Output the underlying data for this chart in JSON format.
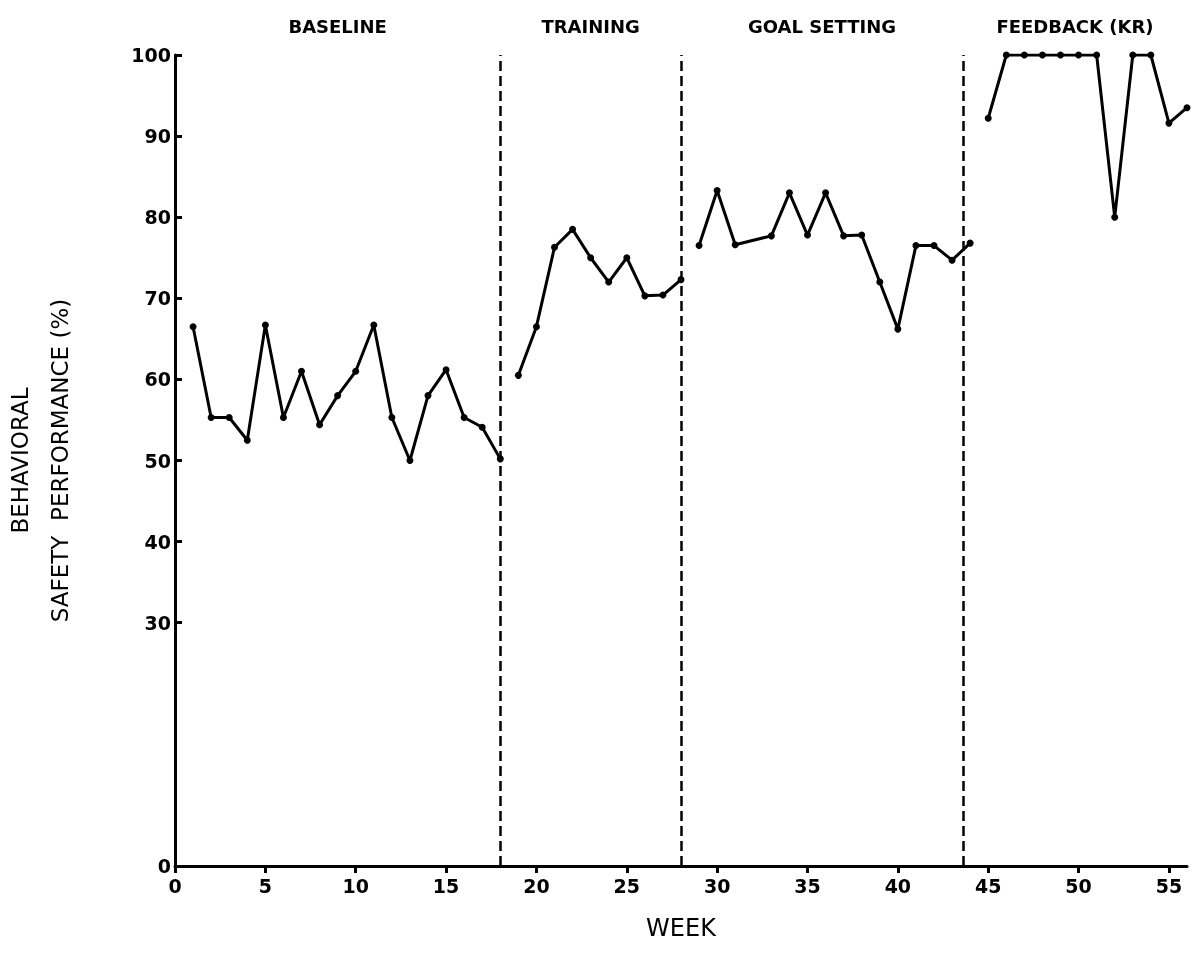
{
  "chart_data": {
    "type": "line",
    "xlabel": "WEEK",
    "ylabel": "BEHAVIORAL\nSAFETY  PERFORMANCE (%)",
    "annotations": [
      "BASELINE",
      "TRAINING",
      "GOAL SETTING",
      "FEEDBACK (KR)"
    ],
    "series": [
      {
        "color": "#000000",
        "x": [
          1,
          2,
          3,
          4,
          5,
          6,
          7,
          8,
          9,
          10,
          11,
          12,
          13,
          14,
          15,
          16,
          17,
          18
        ],
        "values": [
          66.5,
          55.3,
          55.3,
          52.5,
          66.7,
          55.3,
          61,
          54.4,
          58,
          61,
          66.7,
          55.3,
          50,
          58,
          61.2,
          55.3,
          54.1,
          50.2
        ]
      },
      {
        "color": "#000000",
        "x": [
          19,
          20,
          21,
          22,
          23,
          24,
          25,
          26,
          27,
          28
        ],
        "values": [
          60.5,
          66.5,
          76.3,
          78.5,
          75,
          72,
          75,
          70.3,
          70.4,
          72.3
        ]
      },
      {
        "color": "#000000",
        "x": [
          29,
          30,
          31,
          33,
          34,
          35,
          36,
          37,
          38,
          39,
          40,
          41,
          42,
          43,
          44
        ],
        "values": [
          76.5,
          83.3,
          76.6,
          77.7,
          83,
          77.8,
          83,
          77.7,
          77.8,
          72,
          66.2,
          76.5,
          76.5,
          74.7,
          76.8
        ]
      },
      {
        "color": "#000000",
        "x": [
          45,
          46,
          47,
          48,
          49,
          50,
          51,
          52,
          53,
          54,
          55,
          56
        ],
        "values": [
          92.2,
          100,
          100,
          100,
          100,
          100,
          100,
          80,
          100,
          100,
          91.6,
          93.5
        ]
      }
    ],
    "ref_lines": [
      {
        "axis": "x",
        "value": 18,
        "color": "#000000",
        "line_style": "dashed"
      },
      {
        "axis": "x",
        "value": 28,
        "color": "#000000",
        "line_style": "dashed"
      },
      {
        "axis": "x",
        "value": 43.6,
        "color": "#000000",
        "line_style": "dashed"
      }
    ],
    "xlim": [
      0,
      56
    ],
    "xticks": [
      0,
      5,
      10,
      15,
      20,
      25,
      30,
      35,
      40,
      45,
      50,
      55
    ],
    "ylim": [
      0,
      100
    ],
    "yticks": [
      0,
      30,
      40,
      50,
      60,
      70,
      80,
      90,
      100
    ],
    "marker": "circle",
    "line_style": "solid",
    "grid": false
  }
}
